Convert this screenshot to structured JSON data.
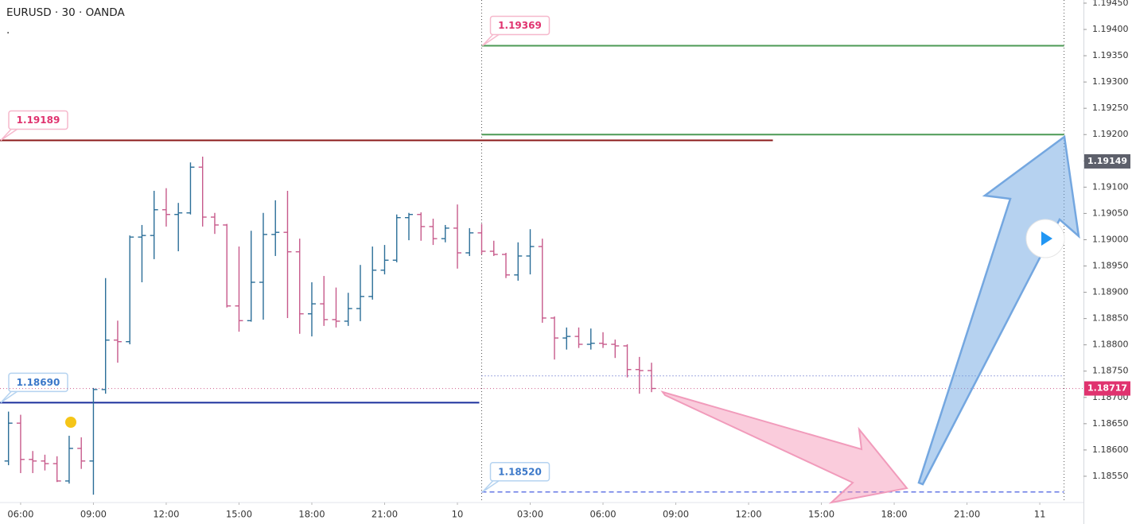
{
  "chart_data": {
    "type": "ohlc",
    "title": "EURUSD · 30 · OANDA",
    "subtitle": ".",
    "up_color": "#2b6e98",
    "down_color": "#c75a8b",
    "xlim": [
      5.15,
      49.8
    ],
    "ylim": [
      1.185,
      1.19456
    ],
    "xticks": [
      {
        "value": 6,
        "label": "06:00"
      },
      {
        "value": 9,
        "label": "09:00"
      },
      {
        "value": 12,
        "label": "12:00"
      },
      {
        "value": 15,
        "label": "15:00"
      },
      {
        "value": 18,
        "label": "18:00"
      },
      {
        "value": 21,
        "label": "21:00"
      },
      {
        "value": 24,
        "label": "10"
      },
      {
        "value": 27,
        "label": "03:00"
      },
      {
        "value": 30,
        "label": "06:00"
      },
      {
        "value": 33,
        "label": "09:00"
      },
      {
        "value": 36,
        "label": "12:00"
      },
      {
        "value": 39,
        "label": "15:00"
      },
      {
        "value": 42,
        "label": "18:00"
      },
      {
        "value": 45,
        "label": "21:00"
      },
      {
        "value": 48,
        "label": "11"
      }
    ],
    "yticks": [
      {
        "value": 1.1855,
        "label": "1.18550"
      },
      {
        "value": 1.186,
        "label": "1.18600"
      },
      {
        "value": 1.1865,
        "label": "1.18650"
      },
      {
        "value": 1.187,
        "label": "1.18700"
      },
      {
        "value": 1.1875,
        "label": "1.18750"
      },
      {
        "value": 1.188,
        "label": "1.18800"
      },
      {
        "value": 1.1885,
        "label": "1.18850"
      },
      {
        "value": 1.189,
        "label": "1.18900"
      },
      {
        "value": 1.1895,
        "label": "1.18950"
      },
      {
        "value": 1.19,
        "label": "1.19000"
      },
      {
        "value": 1.1905,
        "label": "1.19050"
      },
      {
        "value": 1.191,
        "label": "1.19100"
      },
      {
        "value": 1.1915,
        "label": "1.19150"
      },
      {
        "value": 1.192,
        "label": "1.19200"
      },
      {
        "value": 1.1925,
        "label": "1.19250"
      },
      {
        "value": 1.193,
        "label": "1.19300"
      },
      {
        "value": 1.1935,
        "label": "1.19350"
      },
      {
        "value": 1.194,
        "label": "1.19400"
      },
      {
        "value": 1.1945,
        "label": "1.19450"
      }
    ],
    "x": [
      5.5,
      6,
      6.5,
      7,
      7.5,
      8,
      8.5,
      9,
      9.5,
      10,
      10.5,
      11,
      11.5,
      12,
      12.5,
      13,
      13.5,
      14,
      14.5,
      15,
      15.5,
      16,
      16.5,
      17,
      17.5,
      18,
      18.5,
      19,
      19.5,
      20,
      20.5,
      21,
      21.5,
      22,
      22.5,
      23,
      23.5,
      24,
      24.5,
      25,
      25.5,
      26,
      26.5,
      27,
      27.5,
      28,
      28.5,
      29,
      29.5,
      30,
      30.5,
      31,
      31.5,
      32
    ],
    "open": [
      1.18579,
      1.18651,
      1.18582,
      1.18579,
      1.18574,
      1.18541,
      1.18603,
      1.18579,
      1.18715,
      1.18809,
      1.18806,
      1.19005,
      1.19008,
      1.19057,
      1.19048,
      1.19051,
      1.19138,
      1.19043,
      1.19028,
      1.18874,
      1.18846,
      1.18919,
      1.1901,
      1.19014,
      1.18977,
      1.18859,
      1.18878,
      1.18848,
      1.18845,
      1.18869,
      1.18892,
      1.18942,
      1.18961,
      1.19042,
      1.19048,
      1.19025,
      1.19002,
      1.19022,
      1.18975,
      1.19013,
      1.18978,
      1.18972,
      1.18933,
      1.18969,
      1.18987,
      1.18851,
      1.18813,
      1.18816,
      1.18801,
      1.18803,
      1.18801,
      1.18798,
      1.18753,
      1.18751
    ],
    "high": [
      1.18673,
      1.18667,
      1.18598,
      1.18591,
      1.18588,
      1.18627,
      1.18624,
      1.18718,
      1.18927,
      1.18846,
      1.19008,
      1.19028,
      1.19093,
      1.19098,
      1.1907,
      1.19147,
      1.19158,
      1.19051,
      1.1903,
      1.18987,
      1.19017,
      1.19051,
      1.19075,
      1.19093,
      1.19002,
      1.18919,
      1.18931,
      1.18909,
      1.18899,
      1.18952,
      1.18987,
      1.1899,
      1.19048,
      1.19051,
      1.19052,
      1.1904,
      1.19028,
      1.19067,
      1.19022,
      1.1903,
      1.18998,
      1.18975,
      1.18995,
      1.1902,
      1.19002,
      1.18854,
      1.18833,
      1.18833,
      1.18831,
      1.18824,
      1.1881,
      1.18801,
      1.18777,
      1.18766
    ],
    "low": [
      1.18571,
      1.18556,
      1.18556,
      1.18561,
      1.18539,
      1.18536,
      1.18564,
      1.18515,
      1.18707,
      1.18766,
      1.18801,
      1.18919,
      1.18963,
      1.19025,
      1.18978,
      1.19048,
      1.19025,
      1.19011,
      1.18871,
      1.18825,
      1.18844,
      1.18848,
      1.18969,
      1.18851,
      1.18821,
      1.18816,
      1.18836,
      1.18833,
      1.18836,
      1.18845,
      1.18886,
      1.18934,
      1.18957,
      1.18999,
      1.18998,
      1.1899,
      1.18995,
      1.18945,
      1.18969,
      1.18972,
      1.18969,
      1.18927,
      1.18922,
      1.18934,
      1.18842,
      1.18772,
      1.18791,
      1.18794,
      1.18791,
      1.18794,
      1.18775,
      1.18738,
      1.18707,
      1.1871
    ],
    "close": [
      1.18651,
      1.18582,
      1.18579,
      1.18574,
      1.18541,
      1.18603,
      1.18579,
      1.18715,
      1.18809,
      1.18806,
      1.19005,
      1.19008,
      1.19057,
      1.19048,
      1.19051,
      1.19138,
      1.19043,
      1.19028,
      1.18874,
      1.18846,
      1.18919,
      1.1901,
      1.19014,
      1.18977,
      1.18859,
      1.18878,
      1.18848,
      1.18845,
      1.18869,
      1.18892,
      1.18942,
      1.18961,
      1.19042,
      1.19048,
      1.19025,
      1.19002,
      1.19022,
      1.18975,
      1.19013,
      1.18978,
      1.18972,
      1.18933,
      1.18969,
      1.18987,
      1.18851,
      1.18813,
      1.18816,
      1.18801,
      1.18803,
      1.18801,
      1.18798,
      1.18753,
      1.18751,
      1.18717
    ],
    "levels": [
      {
        "value": 1.19369,
        "label": "1.19369",
        "color": "#4c9a55",
        "label_color": "#e0336f",
        "style": "solid",
        "x": [
          25,
          49
        ]
      },
      {
        "value": 1.192,
        "color": "#4c9a55",
        "style": "solid",
        "x": [
          25,
          49
        ]
      },
      {
        "value": 1.19189,
        "label": "1.19189",
        "color": "#8b1a1a",
        "label_color": "#e0336f",
        "style": "solid",
        "x": [
          5.15,
          37
        ]
      },
      {
        "value": 1.1869,
        "label": "1.18690",
        "color": "#1a2f9c",
        "label_color": "#3b78c9",
        "style": "solid",
        "x": [
          5.15,
          24.9
        ]
      },
      {
        "value": 1.1852,
        "label": "1.18520",
        "color": "#4a5fe0",
        "label_color": "#3b78c9",
        "style": "dashed",
        "x": [
          25,
          49
        ]
      },
      {
        "value": 1.18741,
        "color": "#5a67c8",
        "style": "dotted",
        "x": [
          25,
          49
        ]
      },
      {
        "value": 1.18717,
        "color": "#d4719a",
        "style": "dotted",
        "x": [
          5.15,
          49.8
        ]
      }
    ],
    "vlines": [
      25,
      49
    ],
    "price_tags": [
      {
        "value": 1.19149,
        "label": "1.19149",
        "color": "#5d606b"
      },
      {
        "value": 1.18717,
        "label": "1.18717",
        "color": "#e0336f"
      }
    ]
  }
}
